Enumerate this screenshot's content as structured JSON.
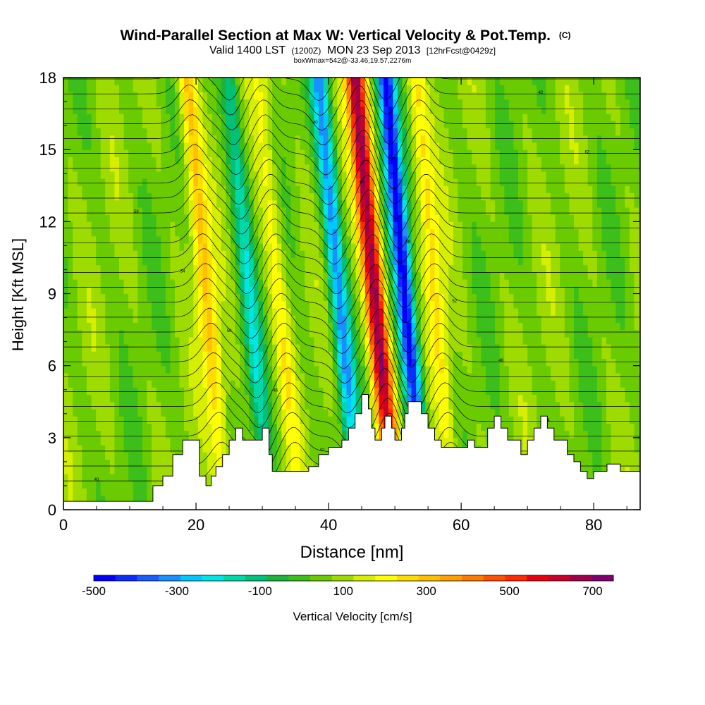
{
  "chart_data": {
    "type": "heatmap",
    "title": "Wind-Parallel Section at Max W: Vertical Velocity & Pot.Temp.",
    "title_badge": "(C)",
    "subtitle_left": "Valid 1400 LST",
    "subtitle_z": "(1200Z)",
    "subtitle_mid": "MON 23 Sep 2013",
    "subtitle_fcst": "[12hrFcst@0429z]",
    "subtitle2": "boxWmax=542@-33.46,19.57,2276m",
    "xlabel": "Distance [nm]",
    "ylabel": "Height [Kft MSL]",
    "xlim": [
      0,
      87
    ],
    "ylim": [
      0,
      18
    ],
    "xticks": [
      0,
      20,
      40,
      60,
      80
    ],
    "yticks": [
      0,
      3,
      6,
      9,
      12,
      15,
      18
    ],
    "grid": false,
    "colorbar": {
      "label": "Vertical Velocity [cm/s]",
      "ticks": [
        -500,
        -300,
        -100,
        100,
        300,
        500,
        700
      ],
      "min": -500,
      "max": 750,
      "colors": [
        "#0000ff",
        "#0b2bff",
        "#1a5cff",
        "#1a8fff",
        "#00c8ff",
        "#00e5e5",
        "#00d8a8",
        "#00c07a",
        "#1bb33c",
        "#3cbf1a",
        "#6acc00",
        "#9edb00",
        "#d6ee00",
        "#ffff00",
        "#ffdc00",
        "#ffc000",
        "#ffa000",
        "#ff7a00",
        "#ff5000",
        "#ff2a00",
        "#e80010",
        "#c8002a",
        "#a0004a",
        "#800070"
      ]
    },
    "updrafts": [
      {
        "x": 22.5,
        "peak_cm_s": 300
      },
      {
        "x": 33.5,
        "peak_cm_s": 200
      },
      {
        "x": 48.0,
        "peak_cm_s": 700
      },
      {
        "x": 57.0,
        "peak_cm_s": 250
      }
    ],
    "downdrafts": [
      {
        "x": 29.0,
        "min_cm_s": -150
      },
      {
        "x": 42.5,
        "min_cm_s": -300
      },
      {
        "x": 52.5,
        "min_cm_s": -500
      }
    ],
    "terrain_kft": [
      [
        0,
        0.35
      ],
      [
        13.5,
        0.35
      ],
      [
        13.5,
        1.0
      ],
      [
        15,
        1.0
      ],
      [
        15,
        1.4
      ],
      [
        16.5,
        1.4
      ],
      [
        16.5,
        2.3
      ],
      [
        18,
        2.3
      ],
      [
        18,
        2.9
      ],
      [
        20.5,
        2.9
      ],
      [
        20.5,
        1.4
      ],
      [
        21.5,
        1.4
      ],
      [
        21.5,
        1.0
      ],
      [
        22.3,
        1.0
      ],
      [
        22.3,
        1.4
      ],
      [
        23,
        1.4
      ],
      [
        23,
        1.8
      ],
      [
        24,
        1.8
      ],
      [
        24,
        2.3
      ],
      [
        25,
        2.3
      ],
      [
        25,
        2.9
      ],
      [
        26,
        2.9
      ],
      [
        26,
        3.4
      ],
      [
        27,
        3.4
      ],
      [
        27,
        2.9
      ],
      [
        30,
        2.9
      ],
      [
        30,
        3.4
      ],
      [
        31,
        3.4
      ],
      [
        31,
        2.3
      ],
      [
        31.5,
        2.3
      ],
      [
        31.5,
        1.6
      ],
      [
        37,
        1.6
      ],
      [
        37,
        1.8
      ],
      [
        38.5,
        1.8
      ],
      [
        38.5,
        2.3
      ],
      [
        40,
        2.3
      ],
      [
        40,
        2.6
      ],
      [
        42,
        2.6
      ],
      [
        42,
        2.9
      ],
      [
        43,
        2.9
      ],
      [
        43,
        3.4
      ],
      [
        44,
        3.4
      ],
      [
        44,
        4.0
      ],
      [
        45,
        4.0
      ],
      [
        45,
        4.8
      ],
      [
        46,
        4.8
      ],
      [
        46,
        4.2
      ],
      [
        46.5,
        4.2
      ],
      [
        46.5,
        3.4
      ],
      [
        47,
        3.4
      ],
      [
        47,
        2.9
      ],
      [
        48,
        2.9
      ],
      [
        48,
        3.4
      ],
      [
        48.5,
        3.4
      ],
      [
        48.5,
        3.9
      ],
      [
        49.5,
        3.9
      ],
      [
        49.5,
        3.4
      ],
      [
        50,
        3.4
      ],
      [
        50,
        2.9
      ],
      [
        51,
        2.9
      ],
      [
        51,
        3.4
      ],
      [
        51.5,
        3.4
      ],
      [
        51.5,
        4.0
      ],
      [
        52,
        4.0
      ],
      [
        52,
        4.5
      ],
      [
        54,
        4.5
      ],
      [
        54,
        4.0
      ],
      [
        55,
        4.0
      ],
      [
        55,
        3.4
      ],
      [
        56,
        3.4
      ],
      [
        56,
        2.9
      ],
      [
        57,
        2.9
      ],
      [
        57,
        2.6
      ],
      [
        61,
        2.6
      ],
      [
        61,
        2.9
      ],
      [
        62,
        2.9
      ],
      [
        62,
        2.6
      ],
      [
        64,
        2.6
      ],
      [
        64,
        3.4
      ],
      [
        65,
        3.4
      ],
      [
        65,
        3.9
      ],
      [
        66,
        3.9
      ],
      [
        66,
        3.4
      ],
      [
        67,
        3.4
      ],
      [
        67,
        2.9
      ],
      [
        69,
        2.9
      ],
      [
        69,
        2.3
      ],
      [
        70,
        2.3
      ],
      [
        70,
        2.9
      ],
      [
        71,
        2.9
      ],
      [
        71,
        3.4
      ],
      [
        72,
        3.4
      ],
      [
        72,
        3.9
      ],
      [
        73,
        3.9
      ],
      [
        73,
        3.4
      ],
      [
        74,
        3.4
      ],
      [
        74,
        2.9
      ],
      [
        76,
        2.9
      ],
      [
        76,
        2.3
      ],
      [
        77,
        2.3
      ],
      [
        77,
        2.0
      ],
      [
        78,
        2.0
      ],
      [
        78,
        1.6
      ],
      [
        79,
        1.6
      ],
      [
        79,
        1.3
      ],
      [
        80,
        1.3
      ],
      [
        80,
        1.6
      ],
      [
        82,
        1.6
      ],
      [
        82,
        1.9
      ],
      [
        84,
        1.9
      ],
      [
        84,
        1.6
      ],
      [
        87,
        1.6
      ],
      [
        87,
        0
      ]
    ],
    "theta_contour_labels": [
      "40",
      "42",
      "44",
      "46",
      "48",
      "50",
      "52",
      "54",
      "56",
      "58",
      "60",
      "62"
    ]
  }
}
